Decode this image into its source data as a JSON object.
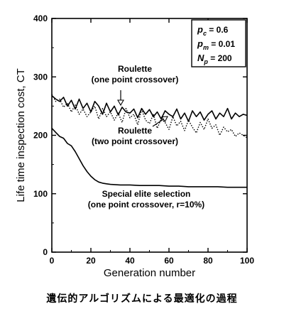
{
  "caption": "遺伝的アルゴリズムによる最適化の過程",
  "chart_data": {
    "type": "line",
    "xlabel": "Generation number",
    "ylabel": "Life time inspection cost, CT",
    "xlim": [
      0,
      100
    ],
    "ylim": [
      0,
      400
    ],
    "xticks": [
      0,
      20,
      40,
      60,
      80,
      100
    ],
    "yticks": [
      0,
      100,
      200,
      300,
      400
    ],
    "grid": false,
    "parameter_box": {
      "lines": [
        {
          "sym": "p",
          "sub": "c",
          "val": "= 0.6"
        },
        {
          "sym": "p",
          "sub": "m",
          "val": "= 0.01"
        },
        {
          "sym": "N",
          "sub": "p",
          "val": "= 200"
        }
      ]
    },
    "annotations": [
      {
        "id": "roulette1",
        "lines": [
          "Roulette",
          "(one point crossover)"
        ]
      },
      {
        "id": "roulette2",
        "lines": [
          "Roulette",
          "(two point crossover)"
        ]
      },
      {
        "id": "elite",
        "lines": [
          "Special elite selection",
          "(one point crossover, r=10%)"
        ]
      }
    ],
    "series": [
      {
        "name": "Roulette (one point crossover)",
        "style": "solid",
        "x": [
          0,
          2,
          4,
          6,
          8,
          10,
          12,
          14,
          16,
          18,
          20,
          22,
          24,
          26,
          28,
          30,
          32,
          34,
          36,
          38,
          40,
          42,
          44,
          46,
          48,
          50,
          52,
          54,
          56,
          58,
          60,
          62,
          64,
          66,
          68,
          70,
          72,
          74,
          76,
          78,
          80,
          82,
          84,
          86,
          88,
          90,
          92,
          94,
          96,
          98,
          100
        ],
        "y": [
          268,
          262,
          258,
          265,
          250,
          260,
          245,
          262,
          246,
          255,
          240,
          258,
          250,
          236,
          255,
          240,
          250,
          235,
          248,
          240,
          238,
          245,
          230,
          246,
          236,
          244,
          232,
          240,
          228,
          242,
          236,
          232,
          245,
          228,
          238,
          224,
          242,
          232,
          240,
          226,
          236,
          242,
          228,
          238,
          232,
          246,
          228,
          238,
          232,
          236,
          234
        ]
      },
      {
        "name": "Roulette (two point crossover)",
        "style": "dotted",
        "x": [
          0,
          2,
          4,
          6,
          8,
          10,
          12,
          14,
          16,
          18,
          20,
          22,
          24,
          26,
          28,
          30,
          32,
          34,
          36,
          38,
          40,
          42,
          44,
          46,
          48,
          50,
          52,
          54,
          56,
          58,
          60,
          62,
          64,
          66,
          68,
          70,
          72,
          74,
          76,
          78,
          80,
          82,
          84,
          86,
          88,
          90,
          92,
          94,
          96,
          98,
          100
        ],
        "y": [
          270,
          258,
          262,
          248,
          255,
          240,
          252,
          236,
          245,
          232,
          240,
          250,
          228,
          246,
          232,
          240,
          226,
          238,
          222,
          246,
          230,
          236,
          218,
          244,
          226,
          220,
          236,
          212,
          228,
          222,
          210,
          232,
          216,
          224,
          208,
          226,
          214,
          204,
          222,
          210,
          228,
          212,
          218,
          200,
          214,
          206,
          210,
          198,
          204,
          200,
          196
        ]
      },
      {
        "name": "Special elite selection (one point crossover, r=10%)",
        "style": "solid",
        "x": [
          0,
          2,
          4,
          6,
          8,
          10,
          12,
          14,
          16,
          18,
          20,
          22,
          24,
          26,
          28,
          30,
          35,
          40,
          45,
          50,
          55,
          60,
          65,
          70,
          75,
          80,
          85,
          90,
          95,
          100
        ],
        "y": [
          212,
          205,
          198,
          195,
          186,
          182,
          172,
          160,
          148,
          138,
          130,
          124,
          120,
          118,
          117,
          116,
          115,
          115,
          114,
          114,
          114,
          113,
          113,
          112,
          112,
          112,
          112,
          111,
          111,
          111
        ]
      }
    ]
  }
}
